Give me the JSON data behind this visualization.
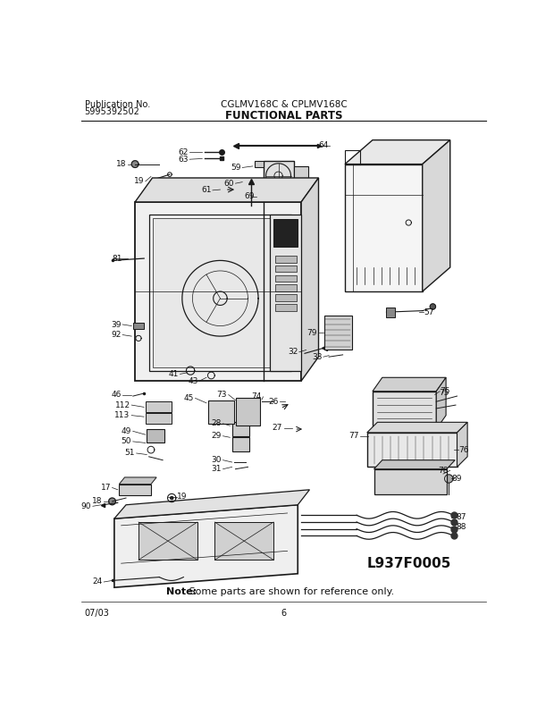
{
  "title_center": "CGLMV168C & CPLMV168C",
  "title_sub": "FUNCTIONAL PARTS",
  "pub_label": "Publication No.",
  "pub_number": "5995392502",
  "date_label": "07/03",
  "page_number": "6",
  "diagram_id": "L937F0005",
  "note_bold": "Note:",
  "note_rest": " Some parts are shown for reference only.",
  "background_color": "#ffffff",
  "line_color": "#1a1a1a",
  "label_fontsize": 6.5,
  "title_fontsize": 8.5,
  "header_fontsize": 7.5
}
